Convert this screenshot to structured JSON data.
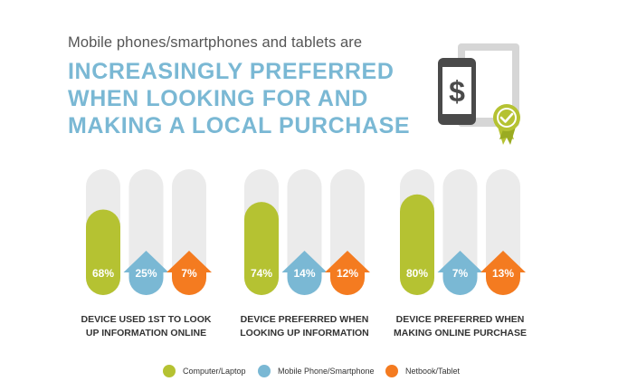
{
  "header": {
    "subtitle": "Mobile phones/smartphones and tablets are",
    "headline": "INCREASINGLY PREFERRED WHEN LOOKING FOR AND MAKING A LOCAL PURCHASE"
  },
  "hero_icon": {
    "phone_icon": "phone-dollar-icon",
    "tablet_icon": "tablet-icon",
    "badge_icon": "checkmark-badge-icon",
    "symbol": "$"
  },
  "colors": {
    "computer": "#b5c232",
    "mobile": "#7ab8d4",
    "netbook": "#f47b20",
    "track": "#ebebeb",
    "headline": "#7ab8d4"
  },
  "chart_data": {
    "type": "bar",
    "ylim": [
      0,
      100
    ],
    "categories": [
      "DEVICE USED 1ST TO LOOK UP INFORMATION ONLINE",
      "DEVICE PREFERRED WHEN LOOKING UP INFORMATION",
      "DEVICE PREFERRED WHEN MAKING ONLINE PURCHASE"
    ],
    "category_lines": [
      [
        "DEVICE USED 1ST TO LOOK",
        "UP INFORMATION ONLINE"
      ],
      [
        "DEVICE PREFERRED WHEN",
        "LOOKING UP INFORMATION"
      ],
      [
        "DEVICE PREFERRED WHEN",
        "MAKING ONLINE PURCHASE"
      ]
    ],
    "series": [
      {
        "name": "Computer/Laptop",
        "values": [
          68,
          74,
          80
        ],
        "labels": [
          "68%",
          "74%",
          "80%"
        ]
      },
      {
        "name": "Mobile Phone/Smartphone",
        "values": [
          25,
          14,
          7
        ],
        "labels": [
          "25%",
          "14%",
          "7%"
        ]
      },
      {
        "name": "Netbook/Tablet",
        "values": [
          7,
          12,
          13
        ],
        "labels": [
          "7%",
          "12%",
          "13%"
        ]
      }
    ]
  }
}
